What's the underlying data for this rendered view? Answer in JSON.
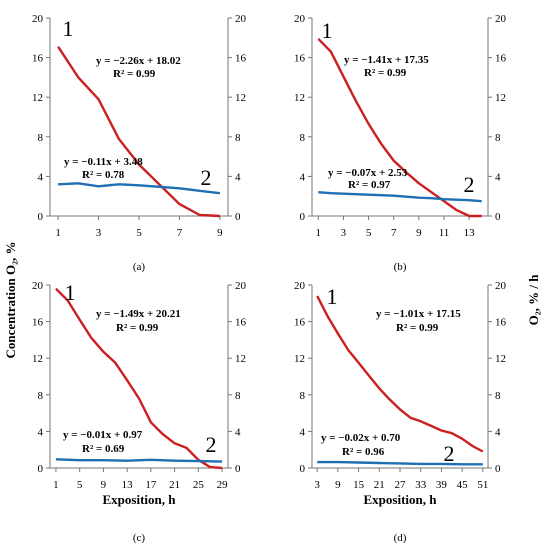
{
  "figure": {
    "ylabel_left": "Concentration O₂, %",
    "ylabel_right": "O₂, % / h"
  },
  "chart_data": [
    {
      "type": "line",
      "panel_label": "(a)",
      "xlabel": "",
      "x_ticks": [
        1,
        3,
        5,
        7,
        9
      ],
      "xlim": [
        0.6,
        9.4
      ],
      "ylim": [
        0,
        20
      ],
      "y_ticks": [
        0,
        4,
        8,
        12,
        16,
        20
      ],
      "y2_ticks": [
        0,
        4,
        8,
        12,
        16,
        20
      ],
      "series": [
        {
          "color": "#cc1f1f",
          "label_num": "1",
          "x": [
            1,
            2,
            3,
            4,
            5,
            6,
            7,
            8,
            9
          ],
          "y": [
            17.1,
            14.0,
            11.8,
            7.8,
            5.2,
            3.2,
            1.2,
            0.1,
            0.0
          ],
          "equation": "y = −2.26x + 18.02",
          "r2": "R² = 0.99"
        },
        {
          "color": "#1f6fb5",
          "label_num": "2",
          "x": [
            1,
            2,
            3,
            4,
            5,
            6,
            7,
            8,
            9
          ],
          "y": [
            3.2,
            3.3,
            3.0,
            3.2,
            3.1,
            2.95,
            2.8,
            2.55,
            2.3
          ],
          "equation": "y = −0.11x + 3.48",
          "r2": "R² = 0.78"
        }
      ]
    },
    {
      "type": "line",
      "panel_label": "(b)",
      "xlabel": "",
      "x_ticks": [
        1,
        3,
        5,
        7,
        9,
        11,
        13
      ],
      "xlim": [
        0.5,
        14.5
      ],
      "ylim": [
        0,
        20
      ],
      "y_ticks": [
        0,
        4,
        8,
        12,
        16,
        20
      ],
      "y2_ticks": [
        0,
        4,
        8,
        12,
        16,
        20
      ],
      "series": [
        {
          "color": "#cc1f1f",
          "label_num": "1",
          "x": [
            1,
            2,
            3,
            4,
            5,
            6,
            7,
            8,
            9,
            10,
            11,
            12,
            13,
            14
          ],
          "y": [
            17.9,
            16.6,
            14.1,
            11.6,
            9.3,
            7.3,
            5.6,
            4.4,
            3.3,
            2.4,
            1.5,
            0.6,
            0.0,
            0.0
          ],
          "equation": "y = −1.41x + 17.35",
          "r2": "R² = 0.99"
        },
        {
          "color": "#1f6fb5",
          "label_num": "2",
          "x": [
            1,
            2,
            3,
            4,
            5,
            6,
            7,
            8,
            9,
            10,
            11,
            12,
            13,
            14
          ],
          "y": [
            2.4,
            2.3,
            2.25,
            2.2,
            2.15,
            2.1,
            2.05,
            1.95,
            1.85,
            1.8,
            1.7,
            1.65,
            1.6,
            1.5
          ],
          "equation": "y = −0.07x + 2.53",
          "r2": "R² = 0.97"
        }
      ]
    },
    {
      "type": "line",
      "panel_label": "(c)",
      "xlabel": "Exposition, h",
      "x_ticks": [
        1,
        5,
        9,
        13,
        17,
        21,
        25,
        29
      ],
      "xlim": [
        0,
        30
      ],
      "ylim": [
        0,
        20
      ],
      "y_ticks": [
        0,
        4,
        8,
        12,
        16,
        20
      ],
      "y2_ticks": [
        0,
        4,
        8,
        12,
        16,
        20
      ],
      "series": [
        {
          "color": "#cc1f1f",
          "label_num": "1",
          "x": [
            1,
            3,
            5,
            7,
            9,
            11,
            13,
            15,
            17,
            19,
            21,
            23,
            25,
            27,
            29
          ],
          "y": [
            19.6,
            18.3,
            16.2,
            14.2,
            12.7,
            11.5,
            9.6,
            7.6,
            5.0,
            3.7,
            2.7,
            2.2,
            0.9,
            0.1,
            0.0
          ],
          "equation": "y = −1.49x + 20.21",
          "r2": "R² = 0.99"
        },
        {
          "color": "#1f6fb5",
          "label_num": "2",
          "x": [
            1,
            5,
            9,
            13,
            17,
            21,
            25,
            29
          ],
          "y": [
            0.95,
            0.85,
            0.85,
            0.8,
            0.9,
            0.8,
            0.75,
            0.7
          ],
          "equation": "y = −0.01x + 0.97",
          "r2": "R² = 0.69"
        }
      ]
    },
    {
      "type": "line",
      "panel_label": "(d)",
      "xlabel": "Exposition, h",
      "x_ticks": [
        3,
        9,
        15,
        21,
        27,
        33,
        39,
        45,
        51
      ],
      "xlim": [
        1.5,
        52.5
      ],
      "ylim": [
        0,
        20
      ],
      "y_ticks": [
        0,
        4,
        8,
        12,
        16,
        20
      ],
      "y2_ticks": [
        0,
        4,
        8,
        12,
        16,
        20
      ],
      "series": [
        {
          "color": "#cc1f1f",
          "label_num": "1",
          "x": [
            3,
            6,
            9,
            12,
            15,
            18,
            21,
            24,
            27,
            30,
            33,
            36,
            39,
            42,
            45,
            48,
            51
          ],
          "y": [
            18.8,
            16.6,
            14.7,
            12.9,
            11.5,
            10.1,
            8.7,
            7.5,
            6.4,
            5.5,
            5.1,
            4.6,
            4.1,
            3.8,
            3.2,
            2.4,
            1.8
          ],
          "equation": "y = −1.01x + 17.15",
          "r2": "R² = 0.99"
        },
        {
          "color": "#1f6fb5",
          "label_num": "2",
          "x": [
            3,
            9,
            15,
            21,
            27,
            33,
            39,
            45,
            51
          ],
          "y": [
            0.65,
            0.65,
            0.6,
            0.55,
            0.5,
            0.45,
            0.45,
            0.4,
            0.4
          ],
          "equation": "y = −0.02x + 0.70",
          "r2": "R² = 0.96"
        }
      ]
    }
  ]
}
